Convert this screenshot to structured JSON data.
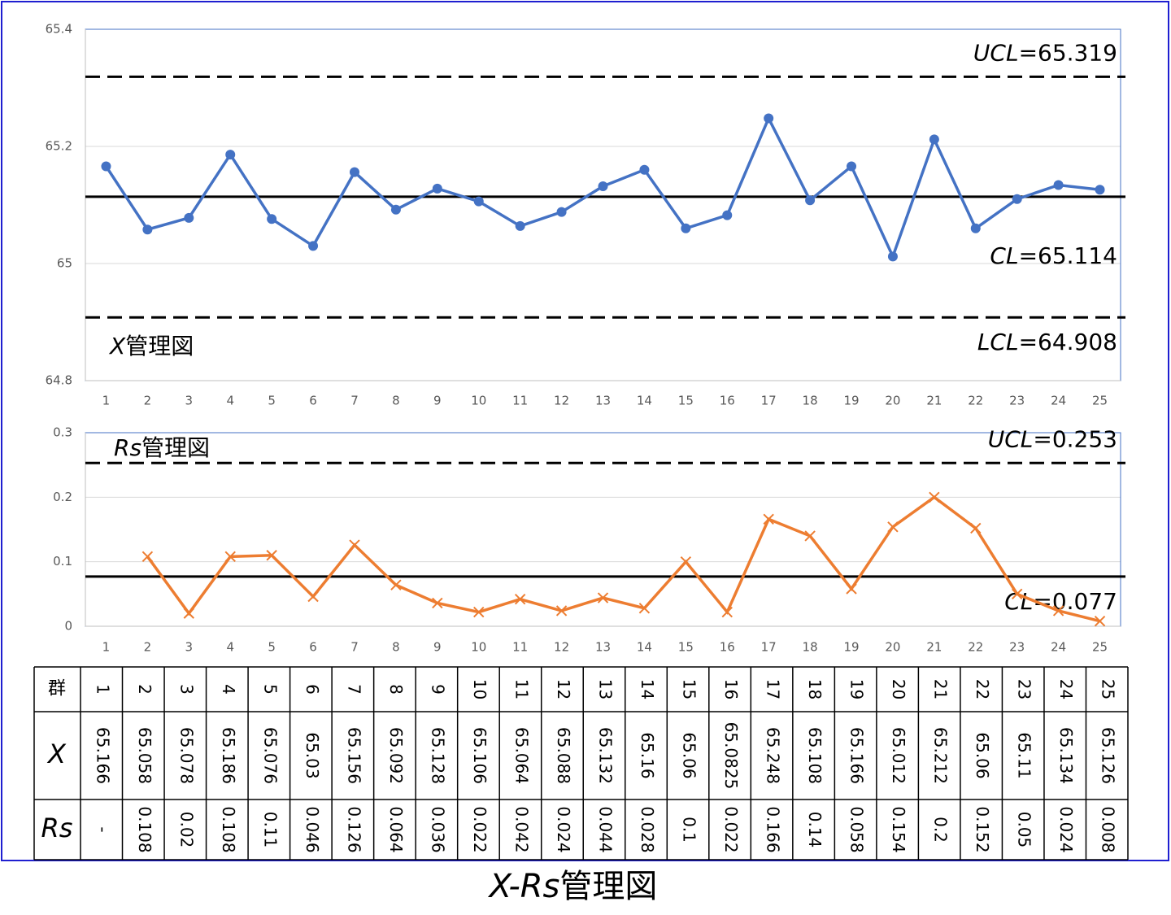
{
  "chart_data": [
    {
      "type": "line",
      "annotation_symbol": "X",
      "annotation_text": "管理図",
      "categories": [
        "1",
        "2",
        "3",
        "4",
        "5",
        "6",
        "7",
        "8",
        "9",
        "10",
        "11",
        "12",
        "13",
        "14",
        "15",
        "16",
        "17",
        "18",
        "19",
        "20",
        "21",
        "22",
        "23",
        "24",
        "25"
      ],
      "values": [
        65.166,
        65.058,
        65.078,
        65.186,
        65.076,
        65.03,
        65.156,
        65.092,
        65.128,
        65.106,
        65.064,
        65.088,
        65.132,
        65.16,
        65.06,
        65.0825,
        65.248,
        65.108,
        65.166,
        65.012,
        65.212,
        65.06,
        65.11,
        65.134,
        65.126
      ],
      "color": "#4472c4",
      "marker": "circle",
      "ylim": [
        64.8,
        65.4
      ],
      "yticks": [
        64.8,
        65,
        65.2,
        65.4
      ],
      "grid": true,
      "lines": [
        {
          "name": "UCL",
          "label": "=65.319",
          "value": 65.319,
          "style": "dashed"
        },
        {
          "name": "CL",
          "label": "=65.114",
          "value": 65.114,
          "style": "solid"
        },
        {
          "name": "LCL",
          "label": "=64.908",
          "value": 64.908,
          "style": "dashed"
        }
      ]
    },
    {
      "type": "line",
      "annotation_symbol": "Rs",
      "annotation_text": "管理図",
      "categories": [
        "1",
        "2",
        "3",
        "4",
        "5",
        "6",
        "7",
        "8",
        "9",
        "10",
        "11",
        "12",
        "13",
        "14",
        "15",
        "16",
        "17",
        "18",
        "19",
        "20",
        "21",
        "22",
        "23",
        "24",
        "25"
      ],
      "values": [
        null,
        0.108,
        0.02,
        0.108,
        0.11,
        0.046,
        0.126,
        0.064,
        0.036,
        0.022,
        0.042,
        0.024,
        0.044,
        0.028,
        0.1,
        0.022,
        0.166,
        0.14,
        0.058,
        0.154,
        0.2,
        0.152,
        0.05,
        0.024,
        0.008
      ],
      "color": "#ed7d31",
      "marker": "x",
      "ylim": [
        0,
        0.3
      ],
      "yticks": [
        0,
        0.1,
        0.2,
        0.3
      ],
      "grid": true,
      "lines": [
        {
          "name": "UCL",
          "label": "=0.253",
          "value": 0.253,
          "style": "dashed"
        },
        {
          "name": "CL",
          "label": "=0.077",
          "value": 0.077,
          "style": "solid"
        }
      ]
    }
  ],
  "table": {
    "rows": [
      [
        "群",
        "1",
        "2",
        "3",
        "4",
        "5",
        "6",
        "7",
        "8",
        "9",
        "10",
        "11",
        "12",
        "13",
        "14",
        "15",
        "16",
        "17",
        "18",
        "19",
        "20",
        "21",
        "22",
        "23",
        "24",
        "25"
      ],
      [
        "X",
        "65.166",
        "65.058",
        "65.078",
        "65.186",
        "65.076",
        "65.03",
        "65.156",
        "65.092",
        "65.128",
        "65.106",
        "65.064",
        "65.088",
        "65.132",
        "65.16",
        "65.06",
        "65.0825",
        "65.248",
        "65.108",
        "65.166",
        "65.012",
        "65.212",
        "65.06",
        "65.11",
        "65.134",
        "65.126"
      ],
      [
        "Rs",
        "-",
        "0.108",
        "0.02",
        "0.108",
        "0.11",
        "0.046",
        "0.126",
        "0.064",
        "0.036",
        "0.022",
        "0.042",
        "0.024",
        "0.044",
        "0.028",
        "0.1",
        "0.022",
        "0.166",
        "0.14",
        "0.058",
        "0.154",
        "0.2",
        "0.152",
        "0.05",
        "0.024",
        "0.008"
      ]
    ]
  },
  "caption": {
    "symbol": "X-Rs",
    "text": "管理図"
  }
}
